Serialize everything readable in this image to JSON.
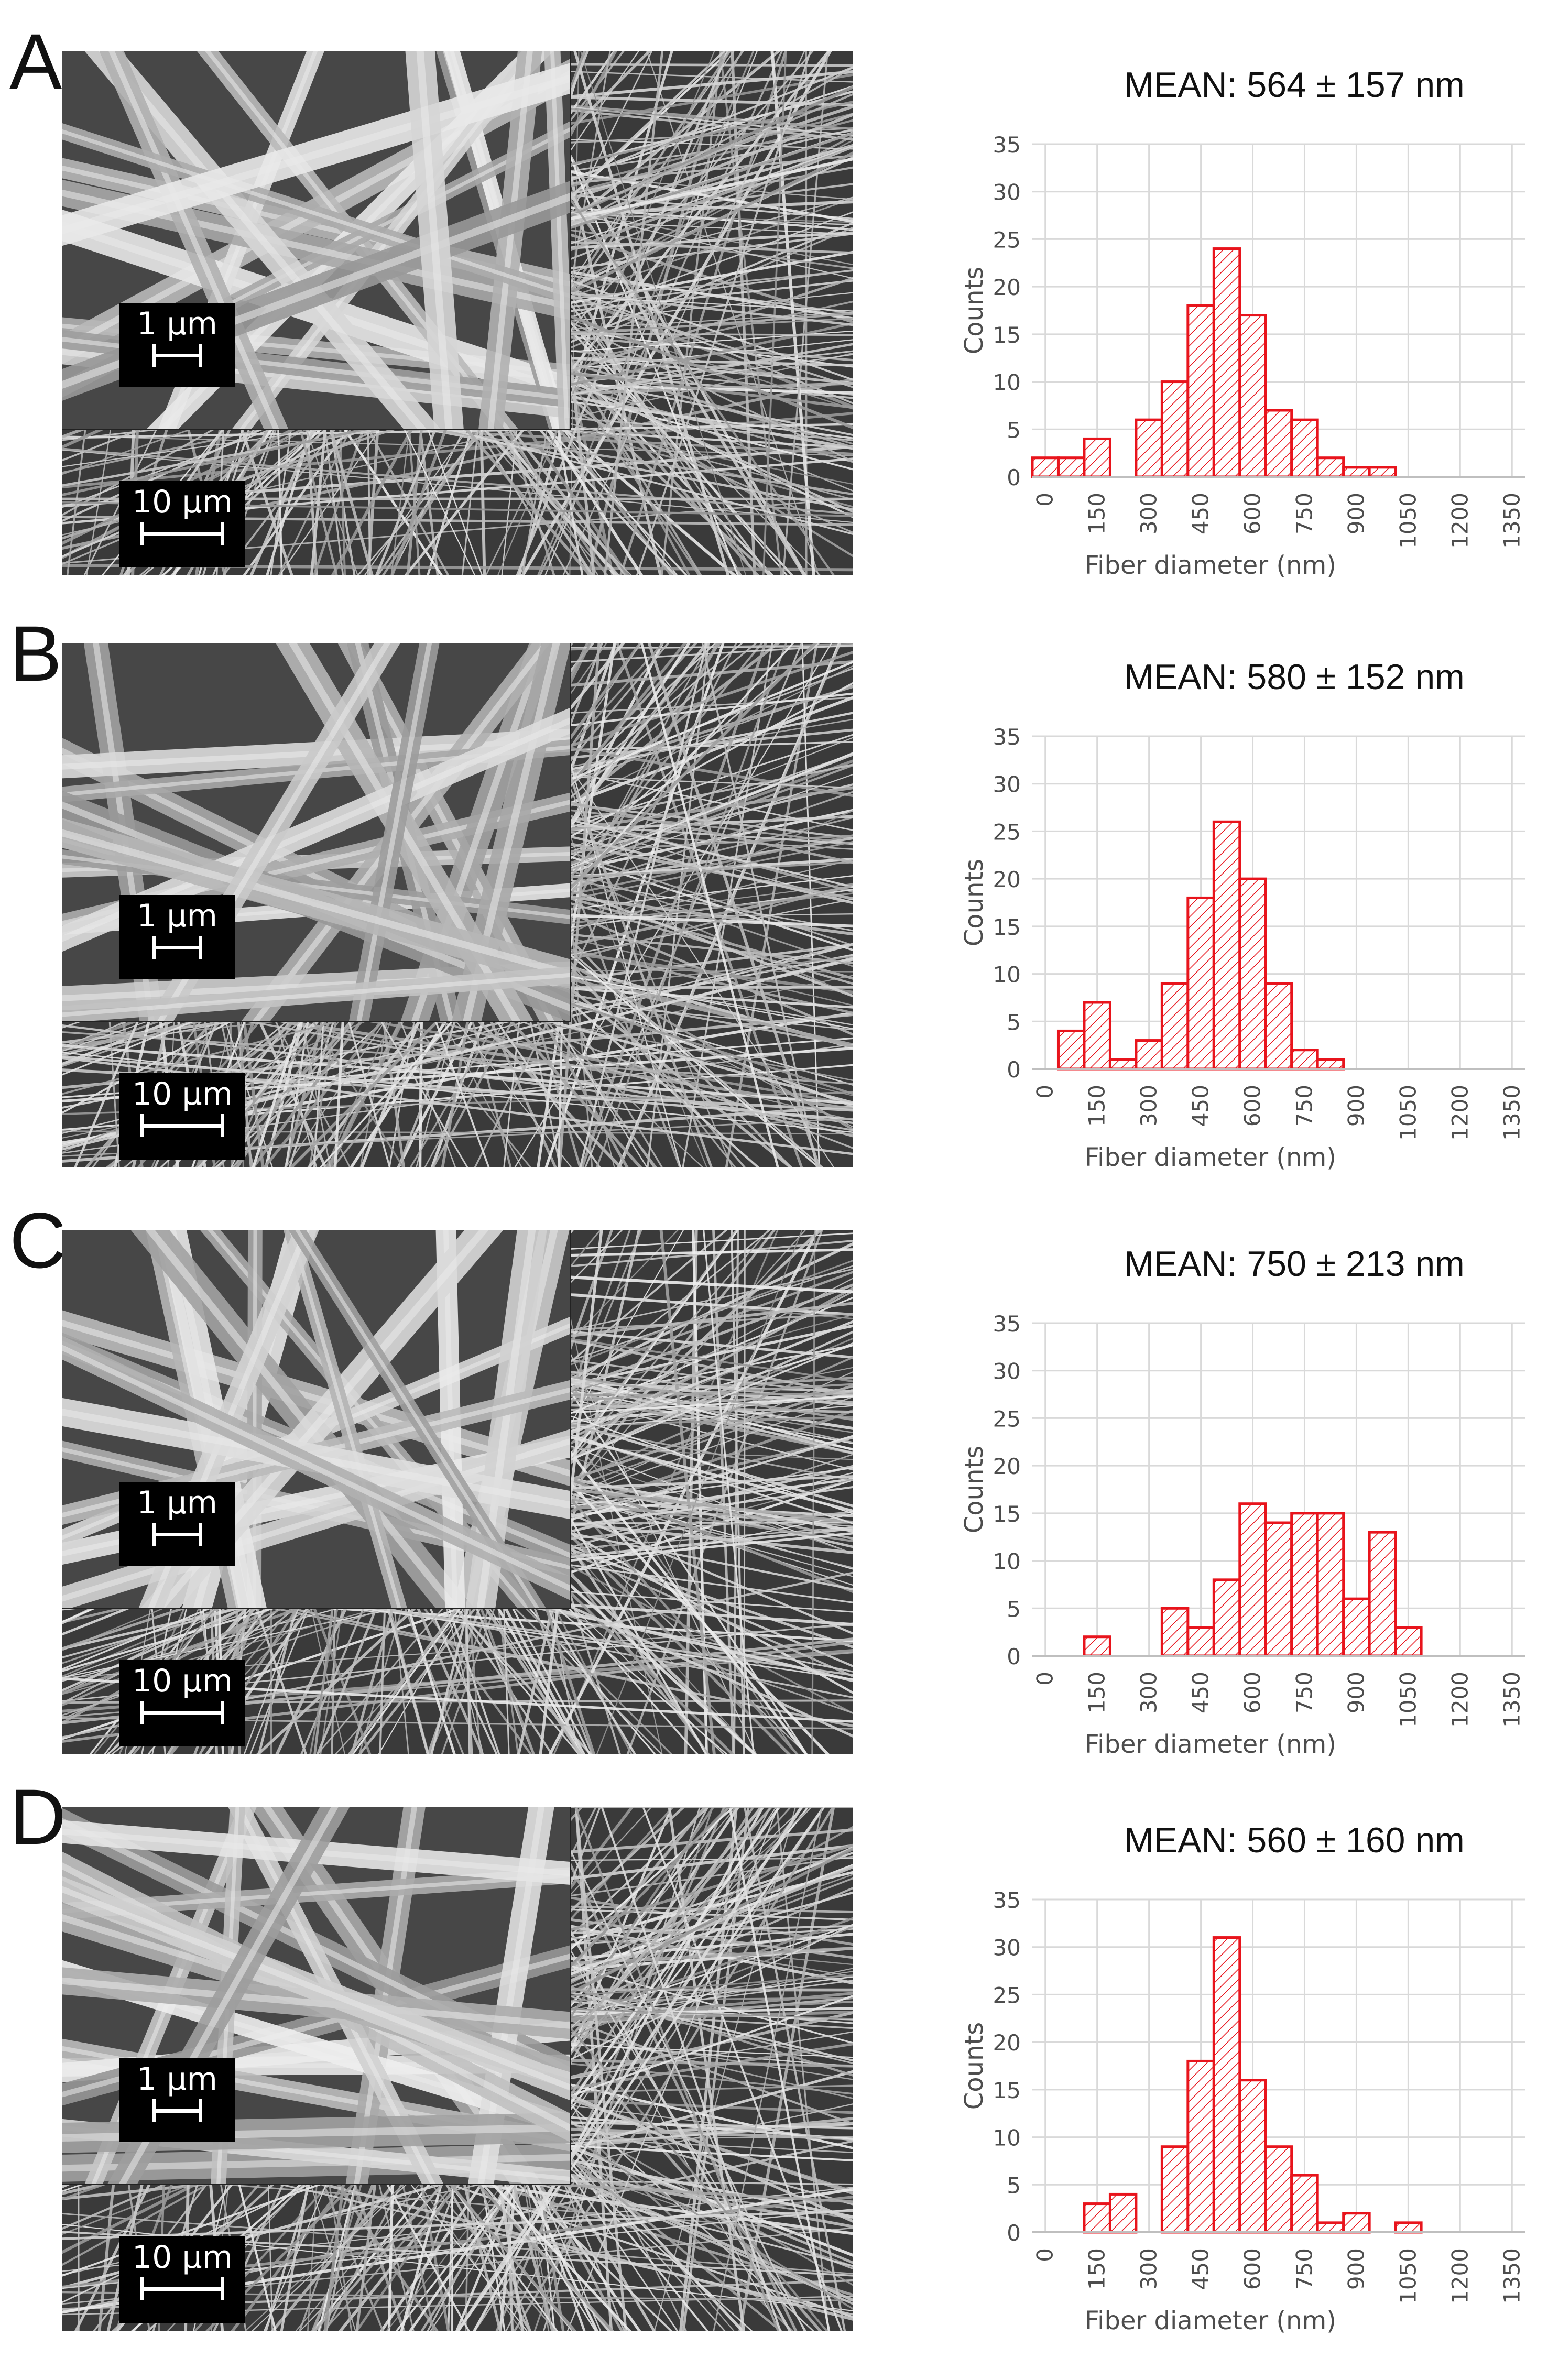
{
  "colors": {
    "bar_stroke": "#e8141c",
    "bar_hatch": "#e8141c",
    "grid": "#d9d9d9",
    "axis_text": "#4d4d4d",
    "title_text": "#111111"
  },
  "panels": [
    {
      "letter": "A",
      "scale_inset": "1 µm",
      "scale_main": "10 µm"
    },
    {
      "letter": "B",
      "scale_inset": "1 µm",
      "scale_main": "10 µm"
    },
    {
      "letter": "C",
      "scale_inset": "1 µm",
      "scale_main": "10 µm"
    },
    {
      "letter": "D",
      "scale_inset": "1 µm",
      "scale_main": "10 µm"
    }
  ],
  "chart_data": [
    {
      "type": "bar",
      "title": "MEAN: 564 ± 157 nm",
      "xlabel": "Fiber diameter (nm)",
      "ylabel": "Counts",
      "ylim": [
        0,
        35
      ],
      "yticks": [
        "0",
        "5",
        "10",
        "15",
        "20",
        "25",
        "30",
        "35"
      ],
      "xticks": [
        "0",
        "150",
        "300",
        "450",
        "600",
        "750",
        "900",
        "1050",
        "1200",
        "1350"
      ],
      "bin_width": 75,
      "bin_starts": [
        0,
        75,
        150,
        225,
        300,
        375,
        450,
        525,
        600,
        675,
        750,
        825,
        900,
        975,
        1050,
        1125,
        1200,
        1275,
        1350
      ],
      "values": [
        2,
        2,
        4,
        0,
        6,
        10,
        18,
        24,
        17,
        7,
        6,
        2,
        1,
        1,
        0,
        0,
        0,
        0,
        0
      ],
      "grid": true
    },
    {
      "type": "bar",
      "title": "MEAN: 580 ± 152 nm",
      "xlabel": "Fiber diameter (nm)",
      "ylabel": "Counts",
      "ylim": [
        0,
        35
      ],
      "yticks": [
        "0",
        "5",
        "10",
        "15",
        "20",
        "25",
        "30",
        "35"
      ],
      "xticks": [
        "0",
        "150",
        "300",
        "450",
        "600",
        "750",
        "900",
        "1050",
        "1200",
        "1350"
      ],
      "bin_width": 75,
      "bin_starts": [
        0,
        75,
        150,
        225,
        300,
        375,
        450,
        525,
        600,
        675,
        750,
        825,
        900,
        975,
        1050,
        1125,
        1200,
        1275,
        1350
      ],
      "values": [
        0,
        4,
        7,
        1,
        3,
        9,
        18,
        26,
        20,
        9,
        2,
        1,
        0,
        0,
        0,
        0,
        0,
        0,
        0
      ],
      "grid": true
    },
    {
      "type": "bar",
      "title": "MEAN: 750 ± 213 nm",
      "xlabel": "Fiber diameter (nm)",
      "ylabel": "Counts",
      "ylim": [
        0,
        35
      ],
      "yticks": [
        "0",
        "5",
        "10",
        "15",
        "20",
        "25",
        "30",
        "35"
      ],
      "xticks": [
        "0",
        "150",
        "300",
        "450",
        "600",
        "750",
        "900",
        "1050",
        "1200",
        "1350"
      ],
      "bin_width": 75,
      "bin_starts": [
        0,
        75,
        150,
        225,
        300,
        375,
        450,
        525,
        600,
        675,
        750,
        825,
        900,
        975,
        1050,
        1125,
        1200,
        1275,
        1350
      ],
      "values": [
        0,
        0,
        2,
        0,
        0,
        5,
        3,
        8,
        16,
        14,
        15,
        15,
        6,
        13,
        3,
        0,
        0,
        0,
        0
      ],
      "grid": true
    },
    {
      "type": "bar",
      "title": "MEAN: 560 ± 160 nm",
      "xlabel": "Fiber diameter (nm)",
      "ylabel": "Counts",
      "ylim": [
        0,
        35
      ],
      "yticks": [
        "0",
        "5",
        "10",
        "15",
        "20",
        "25",
        "30",
        "35"
      ],
      "xticks": [
        "0",
        "150",
        "300",
        "450",
        "600",
        "750",
        "900",
        "1050",
        "1200",
        "1350"
      ],
      "bin_width": 75,
      "bin_starts": [
        0,
        75,
        150,
        225,
        300,
        375,
        450,
        525,
        600,
        675,
        750,
        825,
        900,
        975,
        1050,
        1125,
        1200,
        1275,
        1350
      ],
      "values": [
        0,
        0,
        3,
        4,
        0,
        9,
        18,
        31,
        16,
        9,
        6,
        1,
        2,
        0,
        1,
        0,
        0,
        0,
        0
      ],
      "grid": true
    }
  ]
}
